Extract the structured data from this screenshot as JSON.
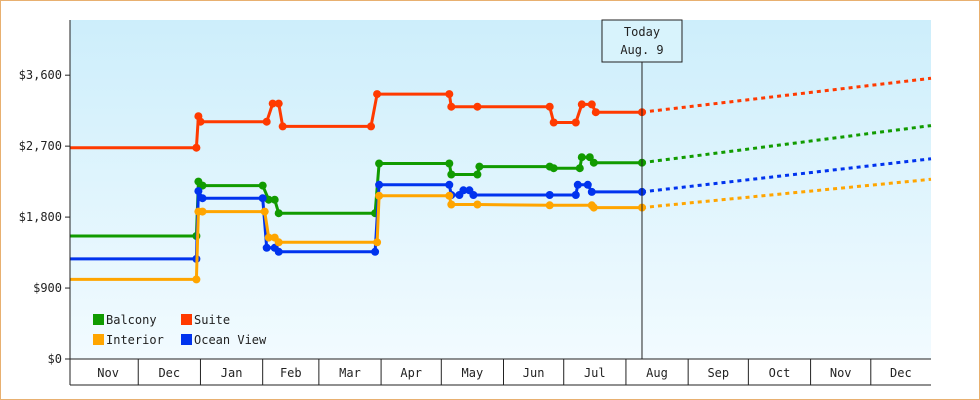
{
  "chart_data": {
    "type": "line",
    "title": "",
    "xlabel": "",
    "ylabel": "",
    "y_axis": {
      "ylim": [
        0,
        4300
      ],
      "ticks": [
        0,
        900,
        1800,
        2700,
        3600
      ],
      "tick_labels": [
        "$0",
        "$900",
        "$1,800",
        "$2,700",
        "$3,600"
      ]
    },
    "x_axis": {
      "range": [
        "2024-10-28",
        "2025-12-31"
      ],
      "months": [
        {
          "label": "Nov",
          "start": "2024-11-01"
        },
        {
          "label": "Dec",
          "start": "2024-12-01"
        },
        {
          "label": "Jan",
          "start": "2025-01-01"
        },
        {
          "label": "Feb",
          "start": "2025-02-01"
        },
        {
          "label": "Mar",
          "start": "2025-03-01"
        },
        {
          "label": "Apr",
          "start": "2025-04-01"
        },
        {
          "label": "May",
          "start": "2025-05-01"
        },
        {
          "label": "Jun",
          "start": "2025-06-01"
        },
        {
          "label": "Jul",
          "start": "2025-07-01"
        },
        {
          "label": "Aug",
          "start": "2025-08-01"
        },
        {
          "label": "Sep",
          "start": "2025-09-01"
        },
        {
          "label": "Oct",
          "start": "2025-10-01"
        },
        {
          "label": "Nov",
          "start": "2025-11-01"
        },
        {
          "label": "Dec",
          "start": "2025-12-01"
        }
      ]
    },
    "today_marker": {
      "date": "2025-08-09",
      "line1": "Today",
      "line2": "Aug. 9"
    },
    "grid": false,
    "legend": {
      "placement": "bottom-left"
    },
    "background": {
      "top": "#cdeefb",
      "bottom": "#f2fbff"
    },
    "series": [
      {
        "name": "Suite",
        "color": "#ff3a00",
        "points": [
          [
            "2024-10-28",
            2680
          ],
          [
            "2024-12-30",
            2680
          ],
          [
            "2024-12-31",
            3080
          ],
          [
            "2025-01-01",
            3010
          ],
          [
            "2025-02-03",
            3010
          ],
          [
            "2025-02-06",
            3240
          ],
          [
            "2025-02-09",
            3240
          ],
          [
            "2025-02-11",
            2950
          ],
          [
            "2025-03-27",
            2950
          ],
          [
            "2025-03-30",
            3360
          ],
          [
            "2025-05-05",
            3360
          ],
          [
            "2025-05-06",
            3200
          ],
          [
            "2025-05-19",
            3200
          ],
          [
            "2025-06-24",
            3200
          ],
          [
            "2025-06-26",
            3000
          ],
          [
            "2025-07-07",
            3000
          ],
          [
            "2025-07-10",
            3230
          ],
          [
            "2025-07-15",
            3230
          ],
          [
            "2025-07-17",
            3130
          ],
          [
            "2025-08-09",
            3130
          ]
        ],
        "forecast": [
          [
            "2025-08-09",
            3130
          ],
          [
            "2025-12-31",
            3560
          ]
        ]
      },
      {
        "name": "Balcony",
        "color": "#119b00",
        "points": [
          [
            "2024-10-28",
            1560
          ],
          [
            "2024-12-30",
            1560
          ],
          [
            "2024-12-31",
            2250
          ],
          [
            "2025-01-02",
            2200
          ],
          [
            "2025-02-01",
            2200
          ],
          [
            "2025-02-04",
            2020
          ],
          [
            "2025-02-07",
            2020
          ],
          [
            "2025-02-09",
            1850
          ],
          [
            "2025-03-29",
            1850
          ],
          [
            "2025-03-31",
            2480
          ],
          [
            "2025-05-05",
            2480
          ],
          [
            "2025-05-06",
            2340
          ],
          [
            "2025-05-19",
            2340
          ],
          [
            "2025-05-20",
            2440
          ],
          [
            "2025-06-24",
            2440
          ],
          [
            "2025-06-26",
            2420
          ],
          [
            "2025-07-09",
            2420
          ],
          [
            "2025-07-10",
            2560
          ],
          [
            "2025-07-14",
            2560
          ],
          [
            "2025-07-16",
            2490
          ],
          [
            "2025-08-09",
            2490
          ]
        ],
        "forecast": [
          [
            "2025-08-09",
            2490
          ],
          [
            "2025-12-31",
            2960
          ]
        ]
      },
      {
        "name": "Ocean View",
        "color": "#0033ee",
        "points": [
          [
            "2024-10-28",
            1270
          ],
          [
            "2024-12-30",
            1270
          ],
          [
            "2024-12-31",
            2130
          ],
          [
            "2025-01-02",
            2040
          ],
          [
            "2025-02-01",
            2040
          ],
          [
            "2025-02-03",
            1410
          ],
          [
            "2025-02-07",
            1410
          ],
          [
            "2025-02-09",
            1360
          ],
          [
            "2025-03-29",
            1360
          ],
          [
            "2025-03-31",
            2210
          ],
          [
            "2025-05-05",
            2210
          ],
          [
            "2025-05-06",
            2080
          ],
          [
            "2025-05-10",
            2080
          ],
          [
            "2025-05-12",
            2140
          ],
          [
            "2025-05-15",
            2140
          ],
          [
            "2025-05-17",
            2080
          ],
          [
            "2025-06-24",
            2080
          ],
          [
            "2025-07-07",
            2080
          ],
          [
            "2025-07-08",
            2210
          ],
          [
            "2025-07-13",
            2210
          ],
          [
            "2025-07-15",
            2120
          ],
          [
            "2025-08-09",
            2120
          ]
        ],
        "forecast": [
          [
            "2025-08-09",
            2120
          ],
          [
            "2025-12-31",
            2540
          ]
        ]
      },
      {
        "name": "Interior",
        "color": "#ffa500",
        "points": [
          [
            "2024-10-28",
            1010
          ],
          [
            "2024-12-30",
            1010
          ],
          [
            "2024-12-31",
            1870
          ],
          [
            "2025-01-02",
            1870
          ],
          [
            "2025-02-02",
            1870
          ],
          [
            "2025-02-04",
            1540
          ],
          [
            "2025-02-07",
            1540
          ],
          [
            "2025-02-09",
            1480
          ],
          [
            "2025-03-30",
            1480
          ],
          [
            "2025-03-31",
            2070
          ],
          [
            "2025-05-05",
            2070
          ],
          [
            "2025-05-06",
            1960
          ],
          [
            "2025-05-19",
            1960
          ],
          [
            "2025-06-24",
            1950
          ],
          [
            "2025-07-15",
            1950
          ],
          [
            "2025-07-16",
            1920
          ],
          [
            "2025-08-09",
            1920
          ]
        ],
        "forecast": [
          [
            "2025-08-09",
            1920
          ],
          [
            "2025-12-31",
            2280
          ]
        ]
      }
    ],
    "legend_entries": [
      "Balcony",
      "Suite",
      "Interior",
      "Ocean View"
    ]
  }
}
